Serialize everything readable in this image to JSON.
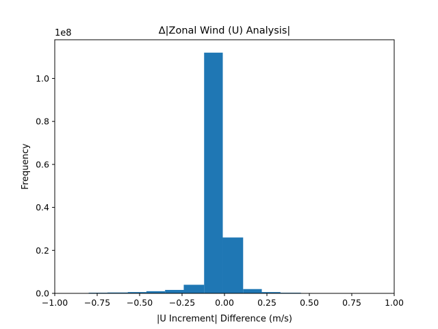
{
  "chart_data": {
    "type": "bar",
    "title": "Δ|Zonal Wind (U) Analysis|",
    "xlabel": "|U Increment| Difference (m/s)",
    "ylabel": "Frequency",
    "y_scale_label": "1e8",
    "xlim": [
      -1.0,
      1.0
    ],
    "ylim": [
      0,
      1.18
    ],
    "x_ticks": [
      -1.0,
      -0.75,
      -0.5,
      -0.25,
      0.0,
      0.25,
      0.5,
      0.75,
      1.0
    ],
    "x_tick_labels": [
      "−1.00",
      "−0.75",
      "−0.50",
      "−0.25",
      "0.00",
      "0.25",
      "0.50",
      "0.75",
      "1.00"
    ],
    "y_ticks": [
      0.0,
      0.2,
      0.4,
      0.6,
      0.8,
      1.0
    ],
    "y_tick_labels": [
      "0.0",
      "0.2",
      "0.4",
      "0.6",
      "0.8",
      "1.0"
    ],
    "grid": false,
    "bar_color": "#1f77b4",
    "bins": [
      {
        "x0": -0.8,
        "x1": -0.69,
        "value": 0.003
      },
      {
        "x0": -0.69,
        "x1": -0.57,
        "value": 0.004
      },
      {
        "x0": -0.57,
        "x1": -0.46,
        "value": 0.006
      },
      {
        "x0": -0.46,
        "x1": -0.35,
        "value": 0.01
      },
      {
        "x0": -0.35,
        "x1": -0.24,
        "value": 0.016
      },
      {
        "x0": -0.24,
        "x1": -0.12,
        "value": 0.04
      },
      {
        "x0": -0.12,
        "x1": -0.01,
        "value": 1.12
      },
      {
        "x0": -0.01,
        "x1": 0.11,
        "value": 0.26
      },
      {
        "x0": 0.11,
        "x1": 0.22,
        "value": 0.02
      },
      {
        "x0": 0.22,
        "x1": 0.33,
        "value": 0.006
      },
      {
        "x0": 0.33,
        "x1": 0.45,
        "value": 0.003
      }
    ]
  }
}
